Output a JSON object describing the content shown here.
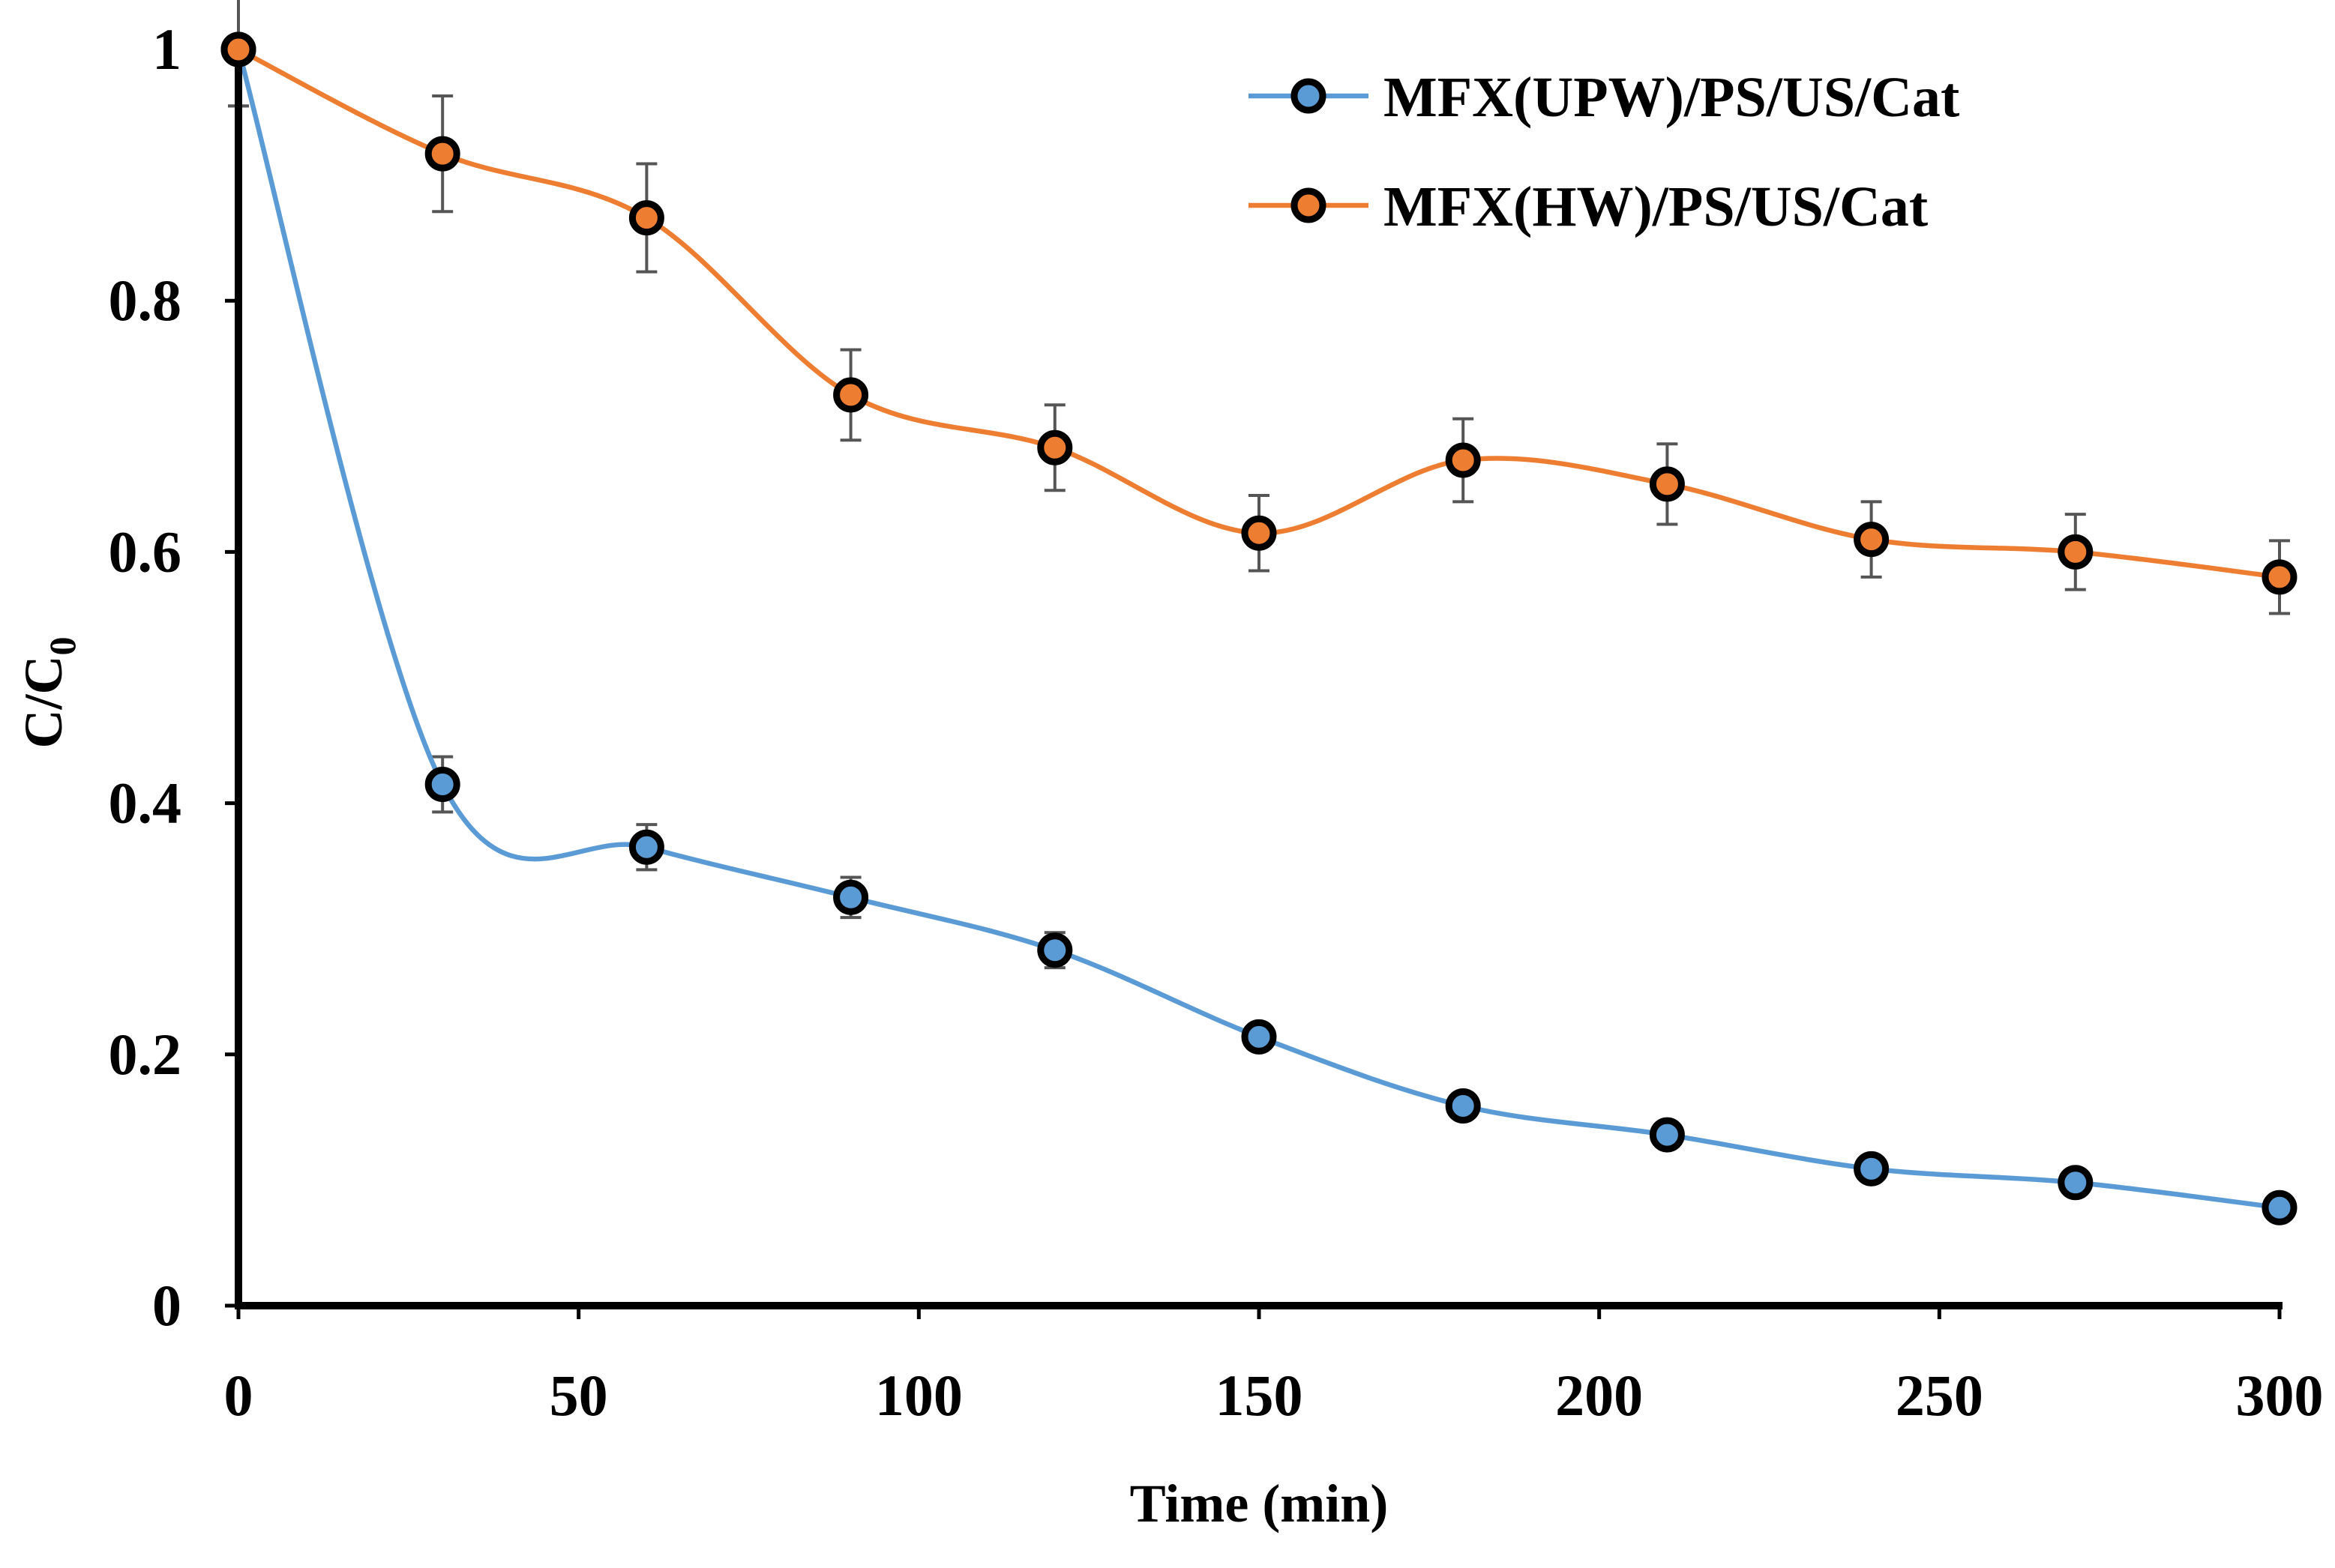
{
  "chart_data": {
    "type": "line",
    "title": "",
    "xlabel": "Time (min)",
    "ylabel_main": "C/C",
    "ylabel_sub": "0",
    "xlim": [
      0,
      300
    ],
    "ylim": [
      0,
      1
    ],
    "xticks": [
      0,
      50,
      100,
      150,
      200,
      250,
      300
    ],
    "yticks": [
      0,
      0.2,
      0.4,
      0.6,
      0.8,
      1
    ],
    "ytick_labels": [
      "0",
      "0.2",
      "0.4",
      "0.6",
      "0.8",
      "1"
    ],
    "grid": false,
    "smooth": true,
    "legend_position": "top-right",
    "x": [
      0,
      30,
      60,
      90,
      120,
      150,
      180,
      210,
      240,
      270,
      300
    ],
    "series": [
      {
        "name": "MFX(UPW)/PS/US/Cat",
        "color": "#5B9BD5",
        "values": [
          1.0,
          0.415,
          0.365,
          0.325,
          0.283,
          0.214,
          0.159,
          0.136,
          0.109,
          0.098,
          0.078
        ],
        "errors": [
          0.045,
          0.022,
          0.018,
          0.016,
          0.014,
          0.0,
          0.0,
          0.0,
          0.0,
          0.0,
          0.0
        ]
      },
      {
        "name": "MFX(HW)/PS/US/Cat",
        "color": "#ED7D31",
        "values": [
          1.0,
          0.917,
          0.866,
          0.725,
          0.683,
          0.615,
          0.673,
          0.654,
          0.61,
          0.6,
          0.58
        ],
        "errors": [
          0.045,
          0.046,
          0.043,
          0.036,
          0.034,
          0.03,
          0.033,
          0.032,
          0.03,
          0.03,
          0.029
        ]
      }
    ]
  }
}
